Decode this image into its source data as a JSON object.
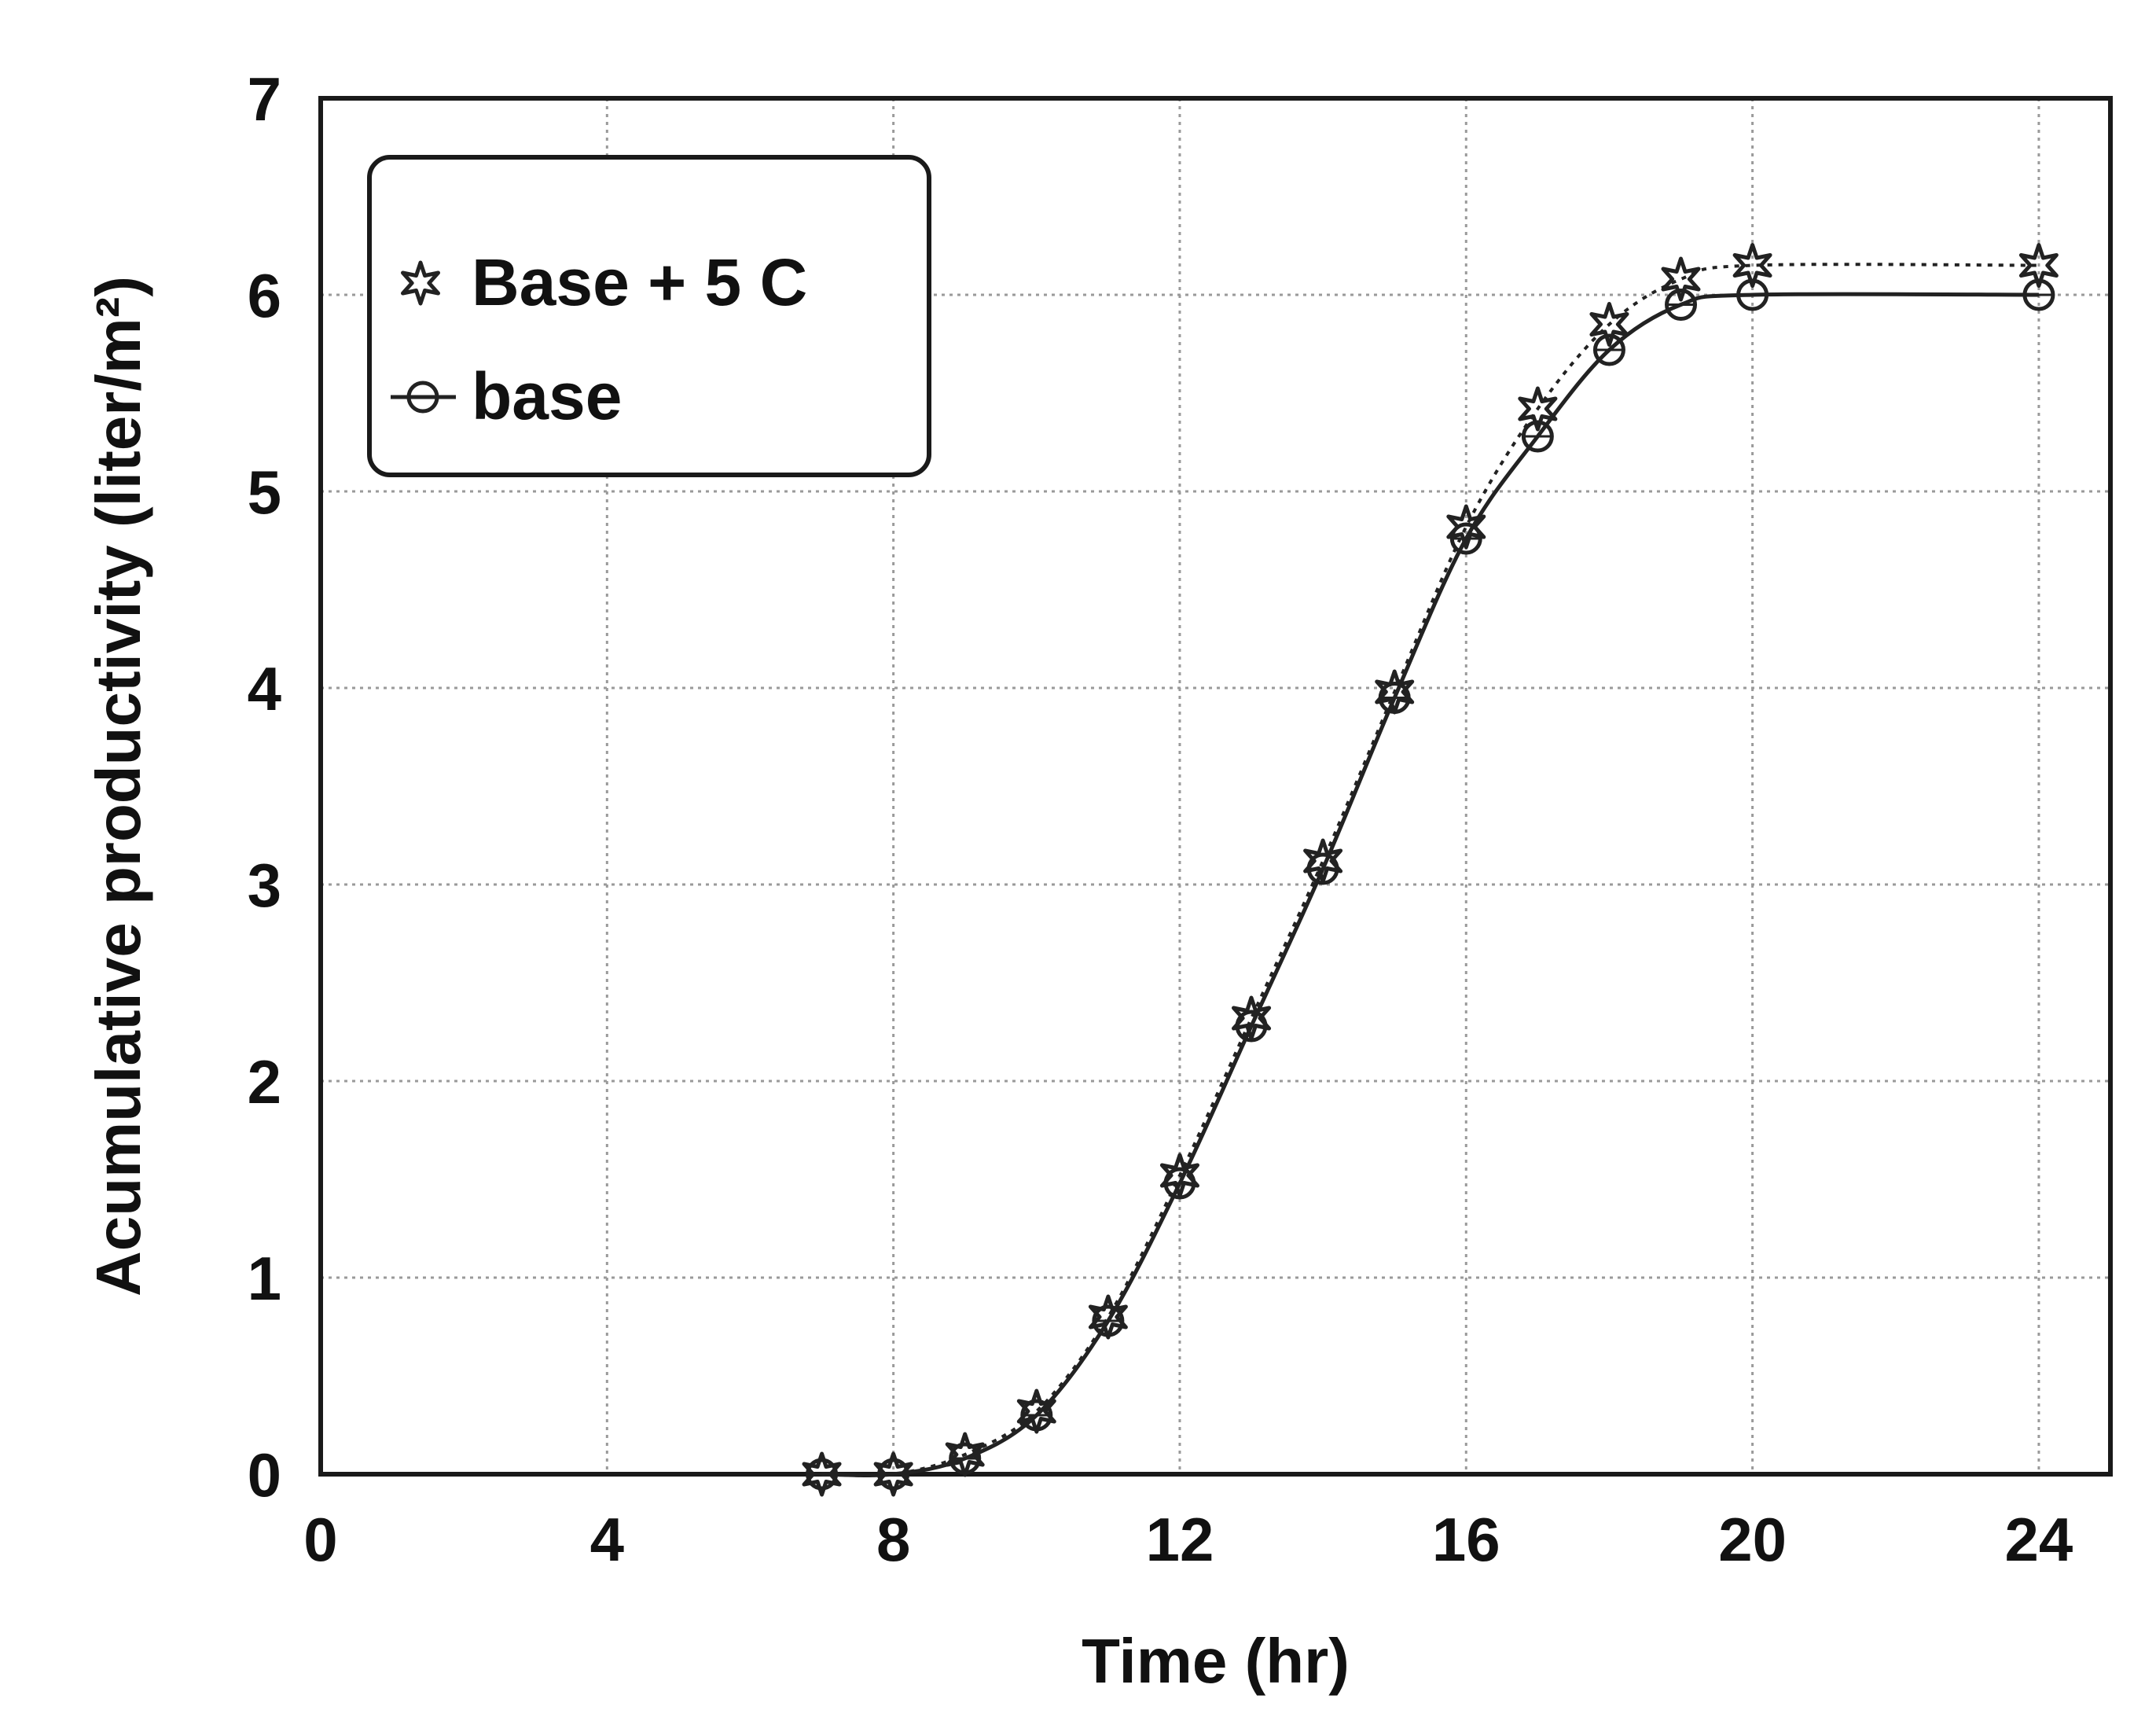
{
  "chart_data": {
    "type": "line",
    "title": "",
    "xlabel": "Time (hr)",
    "ylabel": "Acumulative productivity  (liter/m²)",
    "xlim": [
      0,
      25
    ],
    "ylim": [
      0,
      7
    ],
    "xticks": [
      0,
      4,
      8,
      12,
      16,
      20,
      24
    ],
    "yticks": [
      0,
      1,
      2,
      3,
      4,
      5,
      6,
      7
    ],
    "grid": true,
    "legend_position": "top-left",
    "x": [
      7,
      8,
      9,
      10,
      11,
      12,
      13,
      14,
      15,
      16,
      17,
      18,
      19,
      20,
      24
    ],
    "series": [
      {
        "name": "Base + 5  C",
        "marker": "star",
        "line_style": "dotted",
        "color": "#222222",
        "values": [
          0,
          0,
          0.1,
          0.32,
          0.8,
          1.52,
          2.32,
          3.12,
          3.98,
          4.82,
          5.42,
          5.85,
          6.08,
          6.15,
          6.15
        ]
      },
      {
        "name": "base",
        "marker": "circle",
        "line_style": "solid",
        "color": "#222222",
        "values": [
          0,
          0,
          0.08,
          0.3,
          0.78,
          1.48,
          2.28,
          3.08,
          3.95,
          4.76,
          5.28,
          5.72,
          5.95,
          6.0,
          6.0
        ]
      }
    ]
  }
}
